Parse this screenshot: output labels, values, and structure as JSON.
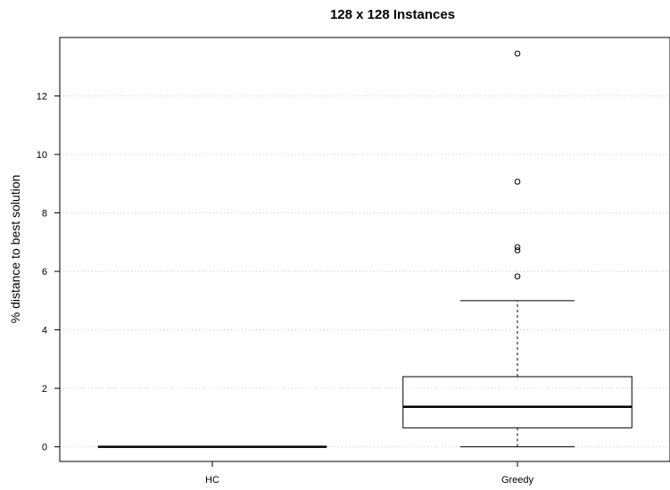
{
  "chart_data": {
    "type": "box",
    "title": "128 x 128 Instances",
    "xlabel": "",
    "ylabel": "% distance to best solution",
    "categories": [
      "HC",
      "Greedy"
    ],
    "ylim": [
      -0.5,
      14
    ],
    "yticks": [
      0,
      2,
      4,
      6,
      8,
      10,
      12
    ],
    "grid": "horizontal dotted",
    "boxes": [
      {
        "name": "HC",
        "whisker_low": 0,
        "q1": 0,
        "median": 0,
        "q3": 0,
        "whisker_high": 0,
        "outliers": []
      },
      {
        "name": "Greedy",
        "whisker_low": 0,
        "q1": 0.65,
        "median": 1.37,
        "q3": 2.4,
        "whisker_high": 5.0,
        "outliers": [
          5.83,
          6.72,
          6.83,
          9.07,
          13.45
        ]
      }
    ]
  }
}
